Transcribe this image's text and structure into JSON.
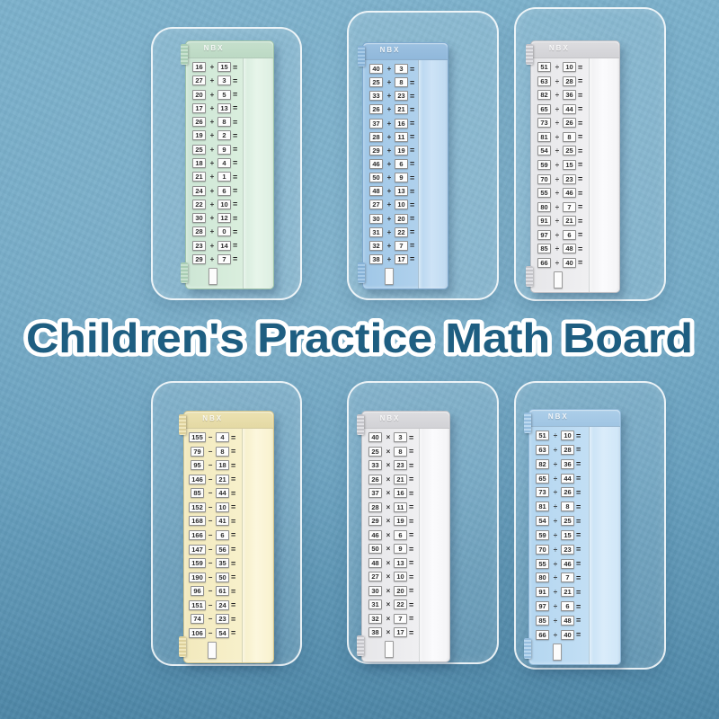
{
  "title": "Children's Practice Math Board",
  "brand": "NBX",
  "equals_sign": "=",
  "colors": {
    "background": "#6fa7c5",
    "title_text": "#1e5e81",
    "title_outline": "#ffffff",
    "board_mint": "#d9eedd",
    "board_blue": "#aed0ec",
    "board_white": "#efeff1",
    "board_yellow": "#f7f0ca",
    "board_lightblue": "#c1def4"
  },
  "boards": [
    {
      "name": "addition-board-mint",
      "scheme": "mint",
      "logo": "NBX",
      "operator": "+",
      "problems": [
        [
          "16",
          "15"
        ],
        [
          "27",
          "3"
        ],
        [
          "20",
          "5"
        ],
        [
          "17",
          "13"
        ],
        [
          "26",
          "8"
        ],
        [
          "19",
          "2"
        ],
        [
          "25",
          "9"
        ],
        [
          "18",
          "4"
        ],
        [
          "21",
          "1"
        ],
        [
          "24",
          "6"
        ],
        [
          "22",
          "10"
        ],
        [
          "30",
          "12"
        ],
        [
          "28",
          "0"
        ],
        [
          "23",
          "14"
        ],
        [
          "29",
          "7"
        ]
      ]
    },
    {
      "name": "addition-board-blue",
      "scheme": "blue",
      "logo": "NBX",
      "operator": "+",
      "problems": [
        [
          "40",
          "3"
        ],
        [
          "25",
          "8"
        ],
        [
          "33",
          "23"
        ],
        [
          "26",
          "21"
        ],
        [
          "37",
          "16"
        ],
        [
          "28",
          "11"
        ],
        [
          "29",
          "19"
        ],
        [
          "46",
          "6"
        ],
        [
          "50",
          "9"
        ],
        [
          "48",
          "13"
        ],
        [
          "27",
          "10"
        ],
        [
          "30",
          "20"
        ],
        [
          "31",
          "22"
        ],
        [
          "32",
          "7"
        ],
        [
          "38",
          "17"
        ]
      ]
    },
    {
      "name": "division-board-white",
      "scheme": "white",
      "logo": "NBX",
      "operator": "÷",
      "problems": [
        [
          "51",
          "10"
        ],
        [
          "63",
          "28"
        ],
        [
          "82",
          "36"
        ],
        [
          "65",
          "44"
        ],
        [
          "73",
          "26"
        ],
        [
          "81",
          "8"
        ],
        [
          "54",
          "25"
        ],
        [
          "59",
          "15"
        ],
        [
          "70",
          "23"
        ],
        [
          "55",
          "46"
        ],
        [
          "80",
          "7"
        ],
        [
          "91",
          "21"
        ],
        [
          "97",
          "6"
        ],
        [
          "85",
          "48"
        ],
        [
          "66",
          "40"
        ]
      ]
    },
    {
      "name": "subtraction-board-yellow",
      "scheme": "yellow",
      "logo": "NBX",
      "operator": "−",
      "problems": [
        [
          "155",
          "4"
        ],
        [
          "79",
          "8"
        ],
        [
          "95",
          "18"
        ],
        [
          "146",
          "21"
        ],
        [
          "85",
          "44"
        ],
        [
          "152",
          "10"
        ],
        [
          "168",
          "41"
        ],
        [
          "166",
          "6"
        ],
        [
          "147",
          "56"
        ],
        [
          "159",
          "35"
        ],
        [
          "190",
          "50"
        ],
        [
          "96",
          "61"
        ],
        [
          "151",
          "24"
        ],
        [
          "74",
          "23"
        ],
        [
          "106",
          "54"
        ]
      ]
    },
    {
      "name": "multiplication-board-white",
      "scheme": "white",
      "logo": "NBX",
      "operator": "×",
      "problems": [
        [
          "40",
          "3"
        ],
        [
          "25",
          "8"
        ],
        [
          "33",
          "23"
        ],
        [
          "26",
          "21"
        ],
        [
          "37",
          "16"
        ],
        [
          "28",
          "11"
        ],
        [
          "29",
          "19"
        ],
        [
          "46",
          "6"
        ],
        [
          "50",
          "9"
        ],
        [
          "48",
          "13"
        ],
        [
          "27",
          "10"
        ],
        [
          "30",
          "20"
        ],
        [
          "31",
          "22"
        ],
        [
          "32",
          "7"
        ],
        [
          "38",
          "17"
        ]
      ]
    },
    {
      "name": "division-board-lightblue",
      "scheme": "lightblue",
      "logo": "NBX",
      "operator": "÷",
      "problems": [
        [
          "51",
          "10"
        ],
        [
          "63",
          "28"
        ],
        [
          "82",
          "36"
        ],
        [
          "65",
          "44"
        ],
        [
          "73",
          "26"
        ],
        [
          "81",
          "8"
        ],
        [
          "54",
          "25"
        ],
        [
          "59",
          "15"
        ],
        [
          "70",
          "23"
        ],
        [
          "55",
          "46"
        ],
        [
          "80",
          "7"
        ],
        [
          "91",
          "21"
        ],
        [
          "97",
          "6"
        ],
        [
          "85",
          "48"
        ],
        [
          "66",
          "40"
        ]
      ]
    }
  ]
}
